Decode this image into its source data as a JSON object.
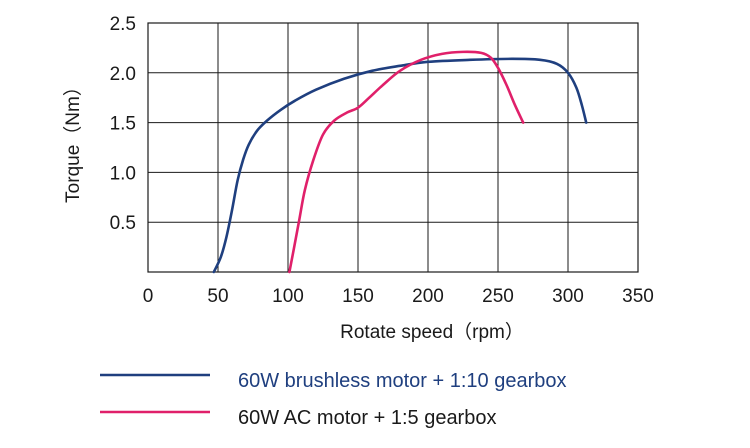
{
  "chart_data": {
    "type": "line",
    "title": "",
    "xlabel": "Rotate speed（rpm）",
    "ylabel": "Torque（Nm）",
    "xlim": [
      0,
      350
    ],
    "ylim": [
      0,
      2.5
    ],
    "x_ticks": [
      "0",
      "50",
      "100",
      "150",
      "200",
      "250",
      "300",
      "350"
    ],
    "y_ticks": [
      "0.5",
      "1.0",
      "1.5",
      "2.0",
      "2.5"
    ],
    "x_tick_values": [
      0,
      50,
      100,
      150,
      200,
      250,
      300,
      350
    ],
    "y_tick_values": [
      0.5,
      1.0,
      1.5,
      2.0,
      2.5
    ],
    "grid": true,
    "legend_position": "bottom",
    "series": [
      {
        "name": "60W brushless motor + 1:10 gearbox",
        "color": "#1f3f7f",
        "x": [
          47,
          52,
          56,
          60,
          64,
          68,
          72,
          78,
          85,
          95,
          105,
          120,
          140,
          160,
          180,
          200,
          230,
          260,
          280,
          292,
          300,
          306,
          310,
          313
        ],
        "y": [
          0.0,
          0.15,
          0.35,
          0.62,
          0.92,
          1.13,
          1.28,
          1.42,
          1.52,
          1.63,
          1.72,
          1.83,
          1.94,
          2.02,
          2.07,
          2.11,
          2.13,
          2.14,
          2.13,
          2.09,
          2.0,
          1.85,
          1.67,
          1.5
        ]
      },
      {
        "name": "60W AC motor + 1:5 gearbox",
        "color": "#e0206a",
        "x": [
          101,
          104,
          108,
          112,
          118,
          125,
          133,
          142,
          150,
          158,
          168,
          180,
          195,
          210,
          225,
          238,
          245,
          250,
          256,
          262,
          268
        ],
        "y": [
          0.0,
          0.22,
          0.52,
          0.82,
          1.12,
          1.38,
          1.52,
          1.6,
          1.65,
          1.75,
          1.88,
          2.02,
          2.13,
          2.19,
          2.21,
          2.2,
          2.15,
          2.05,
          1.88,
          1.68,
          1.5
        ]
      }
    ]
  },
  "legend": {
    "items": [
      {
        "name": "60W brushless motor + 1:10 gearbox",
        "color": "#1f3f7f",
        "text_color": "#1f3f7f"
      },
      {
        "name": "60W AC motor + 1:5 gearbox",
        "color": "#e0206a",
        "text_color": "#1a1a1a"
      }
    ]
  }
}
